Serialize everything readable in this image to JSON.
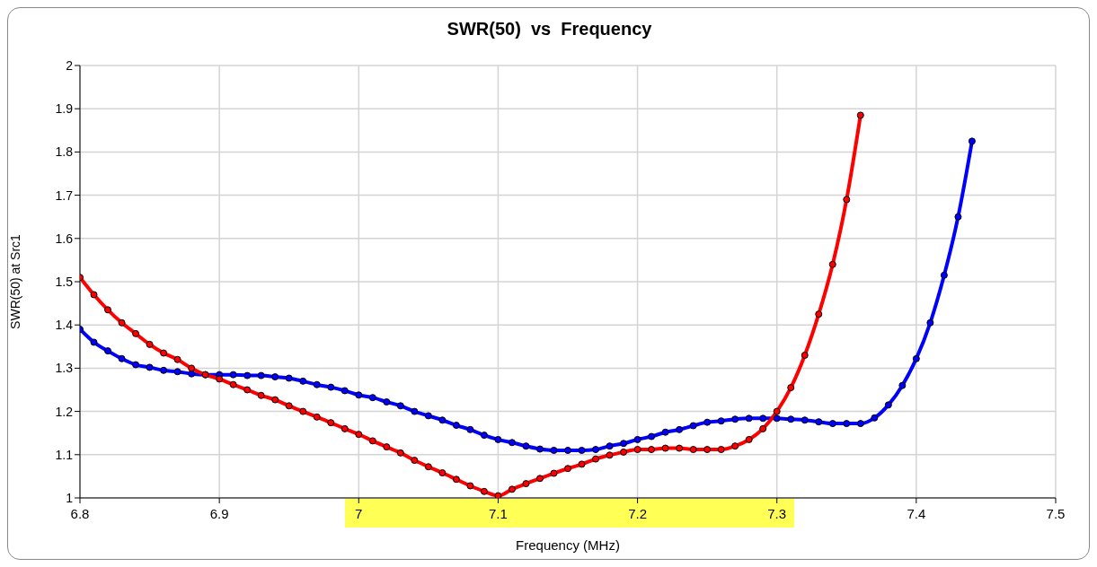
{
  "chart_data": {
    "type": "line",
    "title": "SWR(50)  vs  Frequency",
    "xlabel": "Frequency (MHz)",
    "ylabel": "SWR(50) at Src1",
    "xlim": [
      6.8,
      7.5
    ],
    "xticks": [
      6.8,
      6.9,
      7,
      7.1,
      7.2,
      7.3,
      7.4,
      7.5
    ],
    "ylim": [
      1,
      2
    ],
    "yticks": [
      1,
      1.1,
      1.2,
      1.3,
      1.4,
      1.5,
      1.6,
      1.7,
      1.8,
      1.9,
      2
    ],
    "grid": true,
    "marker": "circle",
    "line_style": "solid",
    "series": [
      {
        "color": "#ff0000",
        "x": [
          6.8,
          6.81,
          6.82,
          6.83,
          6.84,
          6.85,
          6.86,
          6.87,
          6.88,
          6.89,
          6.9,
          6.91,
          6.92,
          6.93,
          6.94,
          6.95,
          6.96,
          6.97,
          6.98,
          6.99,
          7.0,
          7.01,
          7.02,
          7.03,
          7.04,
          7.05,
          7.06,
          7.07,
          7.08,
          7.09,
          7.1,
          7.11,
          7.12,
          7.13,
          7.14,
          7.15,
          7.16,
          7.17,
          7.18,
          7.19,
          7.2,
          7.21,
          7.22,
          7.23,
          7.24,
          7.25,
          7.26,
          7.27,
          7.28,
          7.29,
          7.3,
          7.31,
          7.32,
          7.33,
          7.34,
          7.35,
          7.36
        ],
        "values": [
          1.51,
          1.47,
          1.435,
          1.405,
          1.38,
          1.355,
          1.335,
          1.32,
          1.3,
          1.285,
          1.275,
          1.262,
          1.25,
          1.237,
          1.227,
          1.213,
          1.2,
          1.187,
          1.174,
          1.16,
          1.147,
          1.132,
          1.118,
          1.104,
          1.087,
          1.072,
          1.058,
          1.043,
          1.028,
          1.015,
          1.005,
          1.02,
          1.033,
          1.045,
          1.057,
          1.068,
          1.078,
          1.09,
          1.099,
          1.106,
          1.112,
          1.112,
          1.115,
          1.115,
          1.112,
          1.112,
          1.112,
          1.12,
          1.135,
          1.16,
          1.2,
          1.255,
          1.33,
          1.425,
          1.54,
          1.69,
          1.885
        ]
      },
      {
        "color": "#0000ff",
        "x": [
          6.8,
          6.81,
          6.82,
          6.83,
          6.84,
          6.85,
          6.86,
          6.87,
          6.88,
          6.89,
          6.9,
          6.91,
          6.92,
          6.93,
          6.94,
          6.95,
          6.96,
          6.97,
          6.98,
          6.99,
          7.0,
          7.01,
          7.02,
          7.03,
          7.04,
          7.05,
          7.06,
          7.07,
          7.08,
          7.09,
          7.1,
          7.11,
          7.12,
          7.13,
          7.14,
          7.15,
          7.16,
          7.17,
          7.18,
          7.19,
          7.2,
          7.21,
          7.22,
          7.23,
          7.24,
          7.25,
          7.26,
          7.27,
          7.28,
          7.29,
          7.3,
          7.31,
          7.32,
          7.33,
          7.34,
          7.35,
          7.36,
          7.37,
          7.38,
          7.39,
          7.4,
          7.41,
          7.42,
          7.43,
          7.44
        ],
        "values": [
          1.39,
          1.36,
          1.34,
          1.322,
          1.308,
          1.302,
          1.295,
          1.292,
          1.287,
          1.285,
          1.285,
          1.285,
          1.283,
          1.283,
          1.28,
          1.277,
          1.27,
          1.262,
          1.256,
          1.248,
          1.238,
          1.232,
          1.222,
          1.213,
          1.2,
          1.19,
          1.18,
          1.168,
          1.158,
          1.145,
          1.135,
          1.128,
          1.12,
          1.113,
          1.11,
          1.11,
          1.11,
          1.112,
          1.12,
          1.126,
          1.135,
          1.142,
          1.152,
          1.158,
          1.167,
          1.175,
          1.178,
          1.182,
          1.184,
          1.184,
          1.184,
          1.182,
          1.18,
          1.176,
          1.172,
          1.172,
          1.172,
          1.185,
          1.215,
          1.26,
          1.322,
          1.405,
          1.515,
          1.65,
          1.825
        ]
      }
    ]
  }
}
